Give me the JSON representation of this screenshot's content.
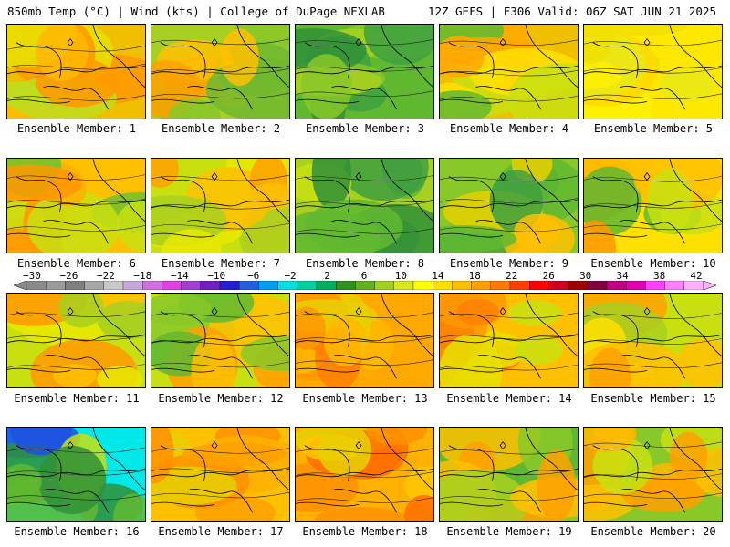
{
  "header": {
    "left": "850mb Temp (°C) | Wind (kts) | College of DuPage NEXLAB",
    "right": "12Z GEFS | F306 Valid: 06Z SAT JUN 21 2025"
  },
  "colorbar": {
    "labels": [
      "−30",
      "−26",
      "−22",
      "−18",
      "−14",
      "−10",
      "−6",
      "−2",
      "2",
      "6",
      "10",
      "14",
      "18",
      "22",
      "26",
      "30",
      "34",
      "38",
      "42"
    ],
    "colors": [
      "#8a8a8a",
      "#9a9a9a",
      "#7f7f7f",
      "#a6a6a6",
      "#c8c8c8",
      "#c7a6e0",
      "#d070e0",
      "#e040e0",
      "#a040d0",
      "#7020c0",
      "#2020d0",
      "#2060e0",
      "#00a0f0",
      "#00e0e0",
      "#00d0a0",
      "#00b060",
      "#309020",
      "#60b020",
      "#a0d020",
      "#d8e820",
      "#ffff00",
      "#ffe000",
      "#ffc000",
      "#ffa000",
      "#ff7800",
      "#ff4000",
      "#ff0000",
      "#d00020",
      "#a00000",
      "#800040",
      "#c00080",
      "#e000b0",
      "#ff40ff",
      "#ff80ff",
      "#ffb0ff"
    ]
  },
  "members": [
    {
      "label": "Ensemble Member: 1",
      "palette": [
        "#f0c000",
        "#ff9800",
        "#ffb800",
        "#e8e000",
        "#c0dc20"
      ]
    },
    {
      "label": "Ensemble Member: 2",
      "palette": [
        "#a8d020",
        "#ffc000",
        "#88c828",
        "#ffa000",
        "#70b830"
      ]
    },
    {
      "label": "Ensemble Member: 3",
      "palette": [
        "#60b830",
        "#40a040",
        "#88c828",
        "#309038",
        "#a8d020"
      ]
    },
    {
      "label": "Ensemble Member: 4",
      "palette": [
        "#f0c000",
        "#c8e010",
        "#ffa800",
        "#60b830",
        "#ffe000"
      ]
    },
    {
      "label": "Ensemble Member: 5",
      "palette": [
        "#ffe800",
        "#fff000",
        "#f0e000",
        "#ffd800",
        "#e8e818"
      ]
    },
    {
      "label": "Ensemble Member: 6",
      "palette": [
        "#ffc000",
        "#ff9800",
        "#c8e010",
        "#70c030",
        "#ffb000"
      ]
    },
    {
      "label": "Ensemble Member: 7",
      "palette": [
        "#c8e010",
        "#e8e800",
        "#ffc000",
        "#a8d020",
        "#ffa000"
      ]
    },
    {
      "label": "Ensemble Member: 8",
      "palette": [
        "#a8d020",
        "#60b830",
        "#40a040",
        "#c8e010",
        "#309038"
      ]
    },
    {
      "label": "Ensemble Member: 9",
      "palette": [
        "#88c828",
        "#40a040",
        "#ffc000",
        "#60b830",
        "#e8d000"
      ]
    },
    {
      "label": "Ensemble Member: 10",
      "palette": [
        "#ffe000",
        "#ffc000",
        "#c8e010",
        "#60b830",
        "#ff9800"
      ]
    },
    {
      "label": "Ensemble Member: 11",
      "palette": [
        "#c8e010",
        "#e8e800",
        "#a8d020",
        "#ff9800",
        "#ffc000"
      ]
    },
    {
      "label": "Ensemble Member: 12",
      "palette": [
        "#c8e010",
        "#88c828",
        "#ffc000",
        "#60b830",
        "#ffa000"
      ]
    },
    {
      "label": "Ensemble Member: 13",
      "palette": [
        "#ffa800",
        "#ff9800",
        "#ffb800",
        "#e8d000",
        "#ff8000"
      ]
    },
    {
      "label": "Ensemble Member: 14",
      "palette": [
        "#ffc000",
        "#ff9800",
        "#ff8000",
        "#e8e000",
        "#c8e010"
      ]
    },
    {
      "label": "Ensemble Member: 15",
      "palette": [
        "#c8e010",
        "#ffc000",
        "#ffa000",
        "#a8d020",
        "#ffe000"
      ]
    },
    {
      "label": "Ensemble Member: 16",
      "palette": [
        "#00e8e8",
        "#309038",
        "#60b830",
        "#2050e0",
        "#c8e010"
      ]
    },
    {
      "label": "Ensemble Member: 17",
      "palette": [
        "#ffc000",
        "#ffa000",
        "#ff9000",
        "#e8d000",
        "#ffb000"
      ]
    },
    {
      "label": "Ensemble Member: 18",
      "palette": [
        "#ffb000",
        "#ff9000",
        "#ff7000",
        "#ffc800",
        "#e8d000"
      ]
    },
    {
      "label": "Ensemble Member: 19",
      "palette": [
        "#60b830",
        "#ffc000",
        "#ffa000",
        "#a8d020",
        "#88c828"
      ]
    },
    {
      "label": "Ensemble Member: 20",
      "palette": [
        "#88c828",
        "#ffc000",
        "#ffa000",
        "#c8e010",
        "#ffb800"
      ]
    }
  ]
}
